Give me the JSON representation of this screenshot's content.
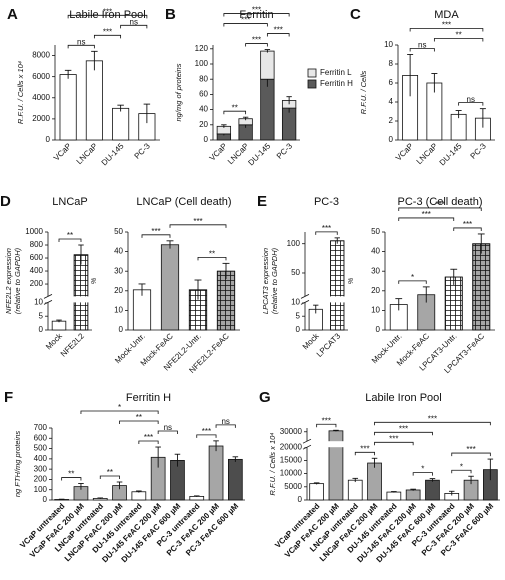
{
  "chart_data": [
    {
      "type": "bar",
      "panel": "A",
      "title": "Labile Iron Pool",
      "ylabel": "R.F.U. / Cells x 10⁴",
      "categories": [
        "VCaP",
        "LNCaP",
        "DU-145",
        "PC-3"
      ],
      "values": [
        6200,
        7500,
        3000,
        2500
      ],
      "errors": [
        400,
        900,
        300,
        900
      ],
      "colors": [
        "#ffffff",
        "#ffffff",
        "#ffffff",
        "#ffffff"
      ],
      "ylim": [
        0,
        9000
      ],
      "yticks": [
        0,
        2000,
        4000,
        6000,
        8000
      ],
      "brackets": [
        {
          "text": "ns",
          "pair": [
            0,
            1
          ]
        },
        {
          "text": "***",
          "pair": [
            0,
            3
          ]
        },
        {
          "text": "***",
          "pair": [
            1,
            2
          ]
        },
        {
          "text": "ns",
          "pair": [
            2,
            3
          ]
        }
      ]
    },
    {
      "type": "stacked_bar",
      "panel": "B",
      "title": "Ferritin",
      "ylabel": "ng/mg of proteins",
      "categories": [
        "VCaP",
        "LNCaP",
        "DU-145",
        "PC-3"
      ],
      "series": [
        {
          "name": "Ferritin H",
          "color": "#5a5a5a",
          "values": [
            8,
            20,
            80,
            42
          ],
          "errors": [
            2,
            4,
            10,
            6
          ]
        },
        {
          "name": "Ferritin L",
          "color": "#e8e8e8",
          "values": [
            10,
            8,
            37,
            10
          ],
          "errors": [
            2,
            2,
            2,
            5
          ]
        }
      ],
      "legend": "right",
      "ylim": [
        0,
        125
      ],
      "yticks": [
        0,
        20,
        40,
        60,
        80,
        100,
        120
      ],
      "brackets": [
        {
          "text": "**",
          "pair": [
            0,
            1
          ]
        },
        {
          "text": "***",
          "pair": [
            0,
            2
          ]
        },
        {
          "text": "***",
          "pair": [
            0,
            3
          ]
        },
        {
          "text": "***",
          "pair": [
            1,
            2
          ]
        },
        {
          "text": "***",
          "pair": [
            2,
            3
          ]
        }
      ]
    },
    {
      "type": "bar",
      "panel": "C",
      "title": "MDA",
      "ylabel": "R.F.U. / Cells",
      "categories": [
        "VCaP",
        "LNCaP",
        "DU-145",
        "PC-3"
      ],
      "values": [
        6.8,
        6.0,
        2.7,
        2.3
      ],
      "errors": [
        2.2,
        1.0,
        0.4,
        1.0
      ],
      "colors": [
        "#ffffff",
        "#ffffff",
        "#ffffff",
        "#ffffff"
      ],
      "ylim": [
        0,
        10
      ],
      "yticks": [
        0,
        2,
        4,
        6,
        8,
        10
      ],
      "brackets": [
        {
          "text": "ns",
          "pair": [
            0,
            1
          ]
        },
        {
          "text": "***",
          "pair": [
            0,
            3
          ]
        },
        {
          "text": "**",
          "pair": [
            1,
            3
          ]
        },
        {
          "text": "ns",
          "pair": [
            2,
            3
          ]
        }
      ]
    },
    {
      "type": "bar",
      "panel": "D",
      "title": "LNCaP",
      "ylabel": [
        "NFE2L2 expression",
        "(relative to GAPDH)"
      ],
      "categories": [
        "Mock",
        "NFE2L2"
      ],
      "values": [
        3.2,
        650
      ],
      "errors": [
        0.4,
        150
      ],
      "colors": [
        "#ffffff",
        "#ffffff"
      ],
      "hatch": [
        false,
        true
      ],
      "segments": [
        {
          "ylim": [
            0,
            10
          ],
          "yticks": [
            0,
            5,
            10
          ]
        },
        {
          "ylim": [
            10,
            1000
          ],
          "yticks": [
            200,
            400,
            600,
            800,
            1000
          ]
        }
      ],
      "brackets": [
        {
          "text": "**",
          "pair": [
            0,
            1
          ]
        }
      ]
    },
    {
      "type": "bar",
      "title": "LNCaP (Cell death)",
      "ylabel": "%",
      "categories": [
        "Mock-Untr.",
        "Mock-FeAC",
        "NFE2L2-Untr.",
        "NFE2L2-FeAC"
      ],
      "values": [
        20.5,
        43.5,
        20.5,
        30
      ],
      "errors": [
        3,
        2,
        5,
        4
      ],
      "colors": [
        "#ffffff",
        "#a6a6a6",
        "#ffffff",
        "#a6a6a6"
      ],
      "hatch": [
        false,
        false,
        true,
        true
      ],
      "ylim": [
        0,
        50
      ],
      "yticks": [
        0,
        10,
        20,
        30,
        40,
        50
      ],
      "brackets": [
        {
          "text": "***",
          "pair": [
            0,
            1
          ]
        },
        {
          "text": "***",
          "pair": [
            1,
            3
          ]
        },
        {
          "text": "**",
          "pair": [
            2,
            3
          ]
        }
      ]
    },
    {
      "type": "bar",
      "panel": "E",
      "title": "PC-3",
      "ylabel": [
        "LPCAT3 expression",
        "(relative to GAPDH)"
      ],
      "categories": [
        "Mock",
        "LPCAT3"
      ],
      "values": [
        7.5,
        105
      ],
      "errors": [
        1.5,
        5
      ],
      "colors": [
        "#ffffff",
        "#ffffff"
      ],
      "hatch": [
        false,
        true
      ],
      "segments": [
        {
          "ylim": [
            0,
            10
          ],
          "yticks": [
            0,
            5,
            10
          ]
        },
        {
          "ylim": [
            10,
            120
          ],
          "yticks": [
            50,
            100
          ]
        }
      ],
      "brackets": [
        {
          "text": "***",
          "pair": [
            0,
            1
          ]
        }
      ]
    },
    {
      "type": "bar",
      "title": "PC-3 (Cell death)",
      "ylabel": "%",
      "categories": [
        "Mock-Untr.",
        "Mock-FeAC",
        "LPCAT3-Untr.",
        "LPCAT3-FeAC"
      ],
      "values": [
        13,
        18,
        27,
        44
      ],
      "errors": [
        3,
        4,
        4,
        5
      ],
      "colors": [
        "#ffffff",
        "#a6a6a6",
        "#ffffff",
        "#a6a6a6"
      ],
      "hatch": [
        false,
        false,
        true,
        true
      ],
      "ylim": [
        0,
        50
      ],
      "yticks": [
        0,
        10,
        20,
        30,
        40,
        50
      ],
      "brackets": [
        {
          "text": "*",
          "pair": [
            0,
            1
          ]
        },
        {
          "text": "***",
          "pair": [
            0,
            2
          ]
        },
        {
          "text": "***",
          "pair": [
            0,
            3
          ]
        },
        {
          "text": "***",
          "pair": [
            2,
            3
          ]
        }
      ]
    },
    {
      "type": "bar",
      "panel": "F",
      "title": "Ferritin H",
      "ylabel": "ng FTH/mg proteins",
      "categories": [
        "VCaP untreated",
        "VCaP FeAC 200 µM",
        "LNCaP untreated",
        "LNCaP FeAC 200 µM",
        "DU-145 untreated",
        "DU-145 FeAC 200 µM",
        "DU-145 FeAC 600 µM",
        "PC-3 untreated",
        "PC-3 FeAC 200 µM",
        "PC-3 FeAC 600 µM"
      ],
      "values": [
        5,
        130,
        15,
        140,
        80,
        415,
        385,
        35,
        525,
        395
      ],
      "errors": [
        3,
        30,
        5,
        35,
        8,
        100,
        60,
        5,
        50,
        25
      ],
      "colors": [
        "#ffffff",
        "#a6a6a6",
        "#ffffff",
        "#a6a6a6",
        "#ffffff",
        "#a6a6a6",
        "#4d4d4d",
        "#ffffff",
        "#a6a6a6",
        "#4d4d4d"
      ],
      "ylim": [
        0,
        700
      ],
      "yticks": [
        0,
        100,
        200,
        300,
        400,
        500,
        600,
        700
      ],
      "brackets": [
        {
          "text": "**",
          "pair": [
            0,
            1
          ]
        },
        {
          "text": "**",
          "pair": [
            2,
            3
          ]
        },
        {
          "text": "***",
          "pair": [
            4,
            5
          ]
        },
        {
          "text": "ns",
          "pair": [
            5,
            6
          ]
        },
        {
          "text": "***",
          "pair": [
            7,
            8
          ]
        },
        {
          "text": "ns",
          "pair": [
            8,
            9
          ]
        },
        {
          "text": "**",
          "pair": [
            3,
            5
          ]
        },
        {
          "text": "*",
          "pair": [
            1,
            5
          ]
        }
      ]
    },
    {
      "type": "bar",
      "panel": "G",
      "title": "Labile Iron Pool",
      "ylabel": "R.F.U. / Cells x 10⁴",
      "categories": [
        "VCaP untreated",
        "VCaP FeAC 200 µM",
        "LNCaP untreated",
        "LNCaP FeAC 200 µM",
        "DU-145 untreated",
        "DU-145 FeAC 200 µM",
        "DU-145 FeAC 600 µM",
        "PC-3 untreated",
        "PC-3 FeAC 200 µM",
        "PC-3 FeAC 600 µM"
      ],
      "values": [
        6200,
        30500,
        7500,
        14000,
        3000,
        3800,
        7500,
        2500,
        7500,
        11500
      ],
      "errors": [
        300,
        300,
        700,
        1800,
        200,
        300,
        600,
        800,
        1500,
        4000
      ],
      "colors": [
        "#ffffff",
        "#a6a6a6",
        "#ffffff",
        "#a6a6a6",
        "#ffffff",
        "#a6a6a6",
        "#4d4d4d",
        "#ffffff",
        "#a6a6a6",
        "#4d4d4d"
      ],
      "segments": [
        {
          "ylim": [
            0,
            20000
          ],
          "yticks": [
            0,
            5000,
            10000,
            15000,
            20000
          ]
        },
        {
          "ylim": [
            25000,
            32000
          ],
          "yticks": [
            30000
          ]
        }
      ],
      "brackets": [
        {
          "text": "***",
          "pair": [
            0,
            1
          ]
        },
        {
          "text": "***",
          "pair": [
            2,
            3
          ]
        },
        {
          "text": "*",
          "pair": [
            5,
            6
          ]
        },
        {
          "text": "*",
          "pair": [
            7,
            8
          ]
        },
        {
          "text": "***",
          "pair": [
            3,
            5
          ]
        },
        {
          "text": "***",
          "pair": [
            7,
            9
          ]
        },
        {
          "text": "***",
          "pair": [
            3,
            6
          ]
        },
        {
          "text": "***",
          "pair": [
            3,
            9
          ]
        }
      ]
    }
  ]
}
